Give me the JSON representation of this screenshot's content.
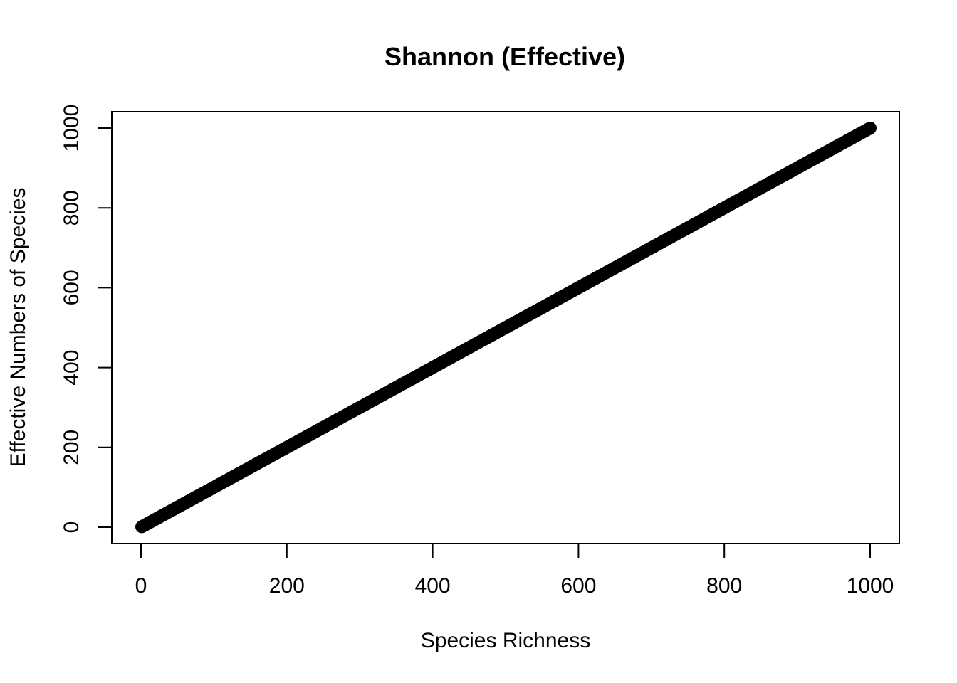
{
  "chart_data": {
    "type": "scatter",
    "title": "Shannon (Effective)",
    "xlabel": "Species Richness",
    "ylabel": "Effective Numbers of Species",
    "xlim": [
      0,
      1000
    ],
    "ylim": [
      0,
      1000
    ],
    "x_ticks": [
      0,
      200,
      400,
      600,
      800,
      1000
    ],
    "y_ticks": [
      0,
      200,
      400,
      600,
      800,
      1000
    ],
    "grid": false,
    "series": [
      {
        "x_start": 1,
        "x_end": 1000,
        "relation": "y = x",
        "color": "#000000"
      }
    ]
  }
}
